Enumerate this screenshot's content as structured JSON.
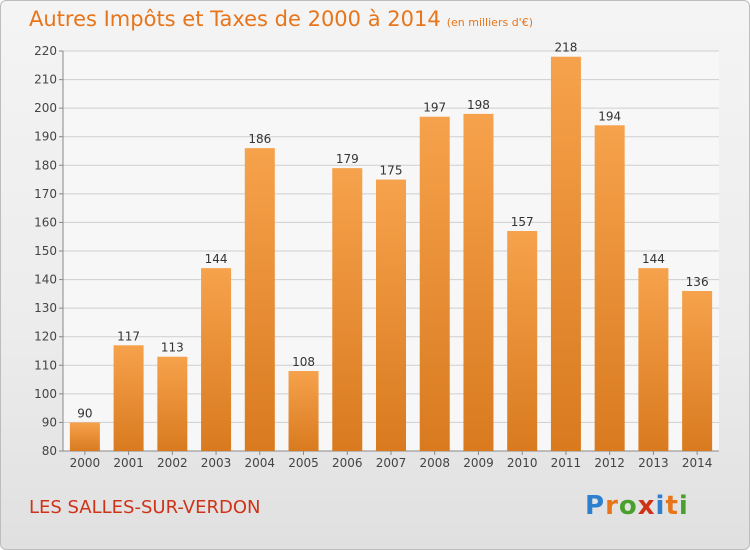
{
  "title": "Autres Impôts et Taxes de 2000 à 2014",
  "subtitle": "(en milliers d'€)",
  "place": "LES SALLES-SUR-VERDON",
  "brand": {
    "text": "Proxiti",
    "letter_colors": [
      "#2f7fd0",
      "#e8751a",
      "#4aa02c",
      "#d03218",
      "#2f7fd0",
      "#e8751a",
      "#4aa02c"
    ]
  },
  "colors": {
    "title": "#e8751a",
    "bar_top": "#f6a24c",
    "bar_bottom": "#d97a1f",
    "place": "#d03218",
    "grid": "#cfcfcf"
  },
  "chart_data": {
    "type": "bar",
    "title": "Autres Impôts et Taxes de 2000 à 2014",
    "subtitle": "(en milliers d'€)",
    "categories": [
      "2000",
      "2001",
      "2002",
      "2003",
      "2004",
      "2005",
      "2006",
      "2007",
      "2008",
      "2009",
      "2010",
      "2011",
      "2012",
      "2013",
      "2014"
    ],
    "values": [
      90,
      117,
      113,
      144,
      186,
      108,
      179,
      175,
      197,
      198,
      157,
      218,
      194,
      144,
      136
    ],
    "ylim": [
      80,
      220
    ],
    "yticks": [
      80,
      90,
      100,
      110,
      120,
      130,
      140,
      150,
      160,
      170,
      180,
      190,
      200,
      210,
      220
    ],
    "grid": true,
    "data_labels": true
  }
}
